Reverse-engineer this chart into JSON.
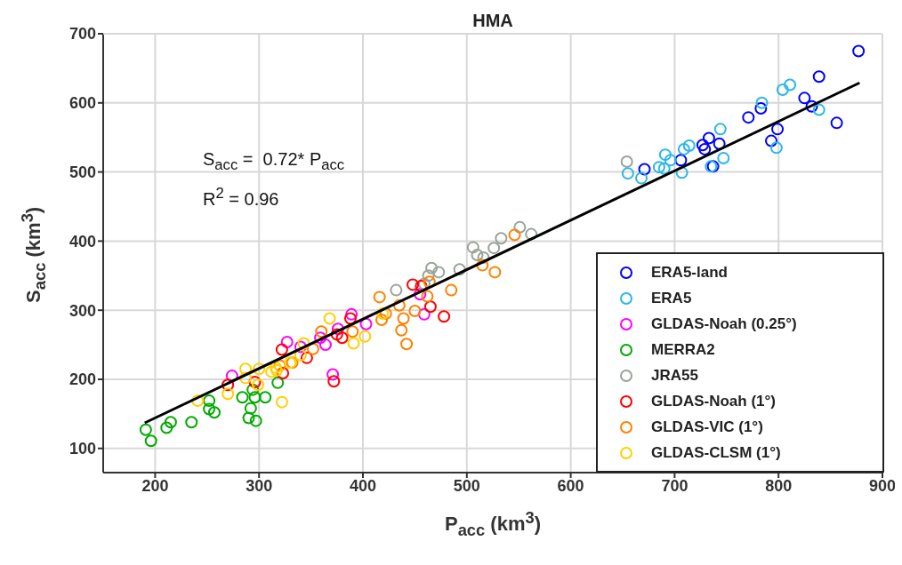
{
  "chart_data": {
    "type": "scatter",
    "title": "HMA",
    "xlabel": "P$_{acc}$ (km$^{3}$)",
    "ylabel": "S$_{acc}$ (km$^{3}$)",
    "annotations": [
      "S$_{acc}$ =  0.72* P$_{acc}$",
      "R$^{2}$ = 0.96"
    ],
    "xlim": [
      150,
      900
    ],
    "xticks": [
      200,
      300,
      400,
      500,
      600,
      700,
      800,
      900
    ],
    "ylim": [
      65,
      700
    ],
    "yticks": [
      100,
      200,
      300,
      400,
      500,
      600,
      700
    ],
    "grid": true,
    "legend": "bottom right",
    "marker": "circle",
    "series": [
      {
        "name": "ERA5-land",
        "color": "#0000ff",
        "x": [
          877,
          839,
          825,
          832,
          856,
          783,
          771,
          799,
          793,
          743,
          733,
          727,
          729,
          737,
          706,
          671
        ],
        "values": [
          675,
          638,
          607,
          595,
          571,
          592,
          579,
          562,
          545,
          541,
          549,
          539,
          533,
          508,
          517,
          504
        ]
      },
      {
        "name": "ERA5",
        "color": "#2ab7e8",
        "x": [
          811,
          804,
          839,
          784,
          744,
          747,
          798,
          735,
          714,
          709,
          691,
          696,
          685,
          690,
          707,
          655,
          668
        ],
        "values": [
          626,
          619,
          590,
          600,
          562,
          520,
          535,
          508,
          538,
          533,
          525,
          517,
          507,
          505,
          499,
          498,
          491
        ]
      },
      {
        "name": "GLDAS-Noah (0.25°)",
        "color": "#ff00ff",
        "x": [
          455,
          459,
          389,
          403,
          376,
          359,
          364,
          327,
          340,
          371,
          274
        ],
        "values": [
          323,
          294,
          294,
          280,
          273,
          260,
          250,
          254,
          247,
          207,
          205
        ]
      },
      {
        "name": "MERRA2",
        "color": "#00aa00",
        "x": [
          191,
          196,
          211,
          215,
          235,
          252,
          252,
          257,
          284,
          292,
          296,
          306,
          290,
          297,
          318,
          294
        ],
        "values": [
          127,
          111,
          130,
          138,
          138,
          169,
          157,
          152,
          174,
          158,
          174,
          174,
          144,
          140,
          195,
          185
        ]
      },
      {
        "name": "JRA55",
        "color": "#99a399",
        "x": [
          654,
          551,
          562,
          533,
          526,
          506,
          510,
          516,
          493,
          466,
          473,
          463,
          432,
          459
        ],
        "values": [
          515,
          420,
          410,
          404,
          390,
          391,
          380,
          376,
          359,
          361,
          355,
          350,
          329,
          338
        ]
      },
      {
        "name": "GLDAS-Noah (1°)",
        "color": "#ff0000",
        "x": [
          448,
          456,
          465,
          478,
          388,
          380,
          375,
          346,
          322,
          323,
          372,
          270,
          296
        ],
        "values": [
          337,
          335,
          305,
          291,
          288,
          260,
          265,
          231,
          243,
          209,
          197,
          192,
          196
        ]
      },
      {
        "name": "GLDAS-VIC (1°)",
        "color": "#ff8000",
        "x": [
          546,
          515,
          527,
          464,
          462,
          485,
          435,
          416,
          422,
          418,
          450,
          439,
          437,
          442,
          390,
          360,
          352,
          332,
          320
        ],
        "values": [
          409,
          365,
          355,
          341,
          320,
          329,
          307,
          319,
          295,
          286,
          299,
          288,
          271,
          251,
          269,
          269,
          244,
          224,
          220
        ]
      },
      {
        "name": "GLDAS-CLSM (1°)",
        "color": "#ffd000",
        "x": [
          368,
          419,
          402,
          391,
          343,
          340,
          316,
          287,
          300,
          312,
          317,
          270,
          241,
          299,
          322,
          287,
          330
        ],
        "values": [
          288,
          295,
          262,
          252,
          252,
          235,
          217,
          215,
          215,
          211,
          213,
          179,
          169,
          192,
          167,
          202,
          224
        ]
      },
      {
        "type": "line",
        "marker": "none",
        "color": "#000000",
        "x": [
          190,
          878
        ],
        "values": [
          137,
          629
        ]
      }
    ]
  }
}
